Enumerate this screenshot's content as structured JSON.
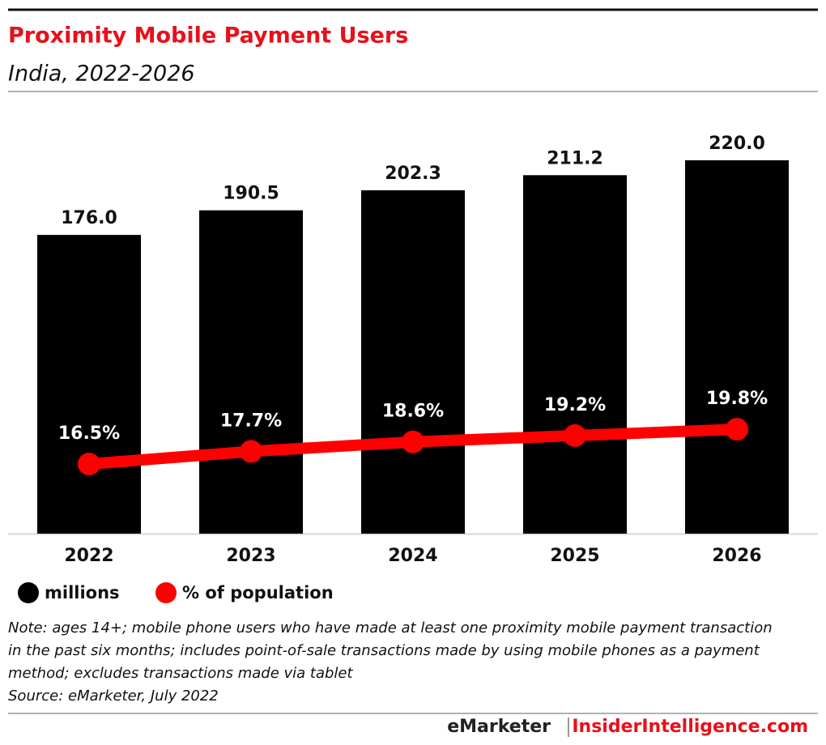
{
  "chart_data": {
    "type": "bar",
    "title": "Proximity Mobile Payment Users",
    "subtitle": "India, 2022-2026",
    "categories": [
      "2022",
      "2023",
      "2024",
      "2025",
      "2026"
    ],
    "series": [
      {
        "name": "millions",
        "type": "bar",
        "color": "#000000",
        "values": [
          176.0,
          190.5,
          202.3,
          211.2,
          220.0
        ],
        "value_labels": [
          "176.0",
          "190.5",
          "202.3",
          "211.2",
          "220.0"
        ]
      },
      {
        "name": "% of population",
        "type": "line",
        "color": "#ff0000",
        "values": [
          16.5,
          17.7,
          18.6,
          19.2,
          19.8
        ],
        "value_labels": [
          "16.5%",
          "17.7%",
          "18.6%",
          "19.2%",
          "19.8%"
        ]
      }
    ],
    "note": "Note: ages 14+; mobile phone users who have made at least one proximity mobile payment transaction in the past six months; includes point-of-sale transactions made by using mobile phones as a payment method; excludes transactions made via tablet",
    "source": "Source: eMarketer, July 2022",
    "footer": {
      "brand": "eMarketer",
      "site": "InsiderIntelligence.com"
    }
  }
}
